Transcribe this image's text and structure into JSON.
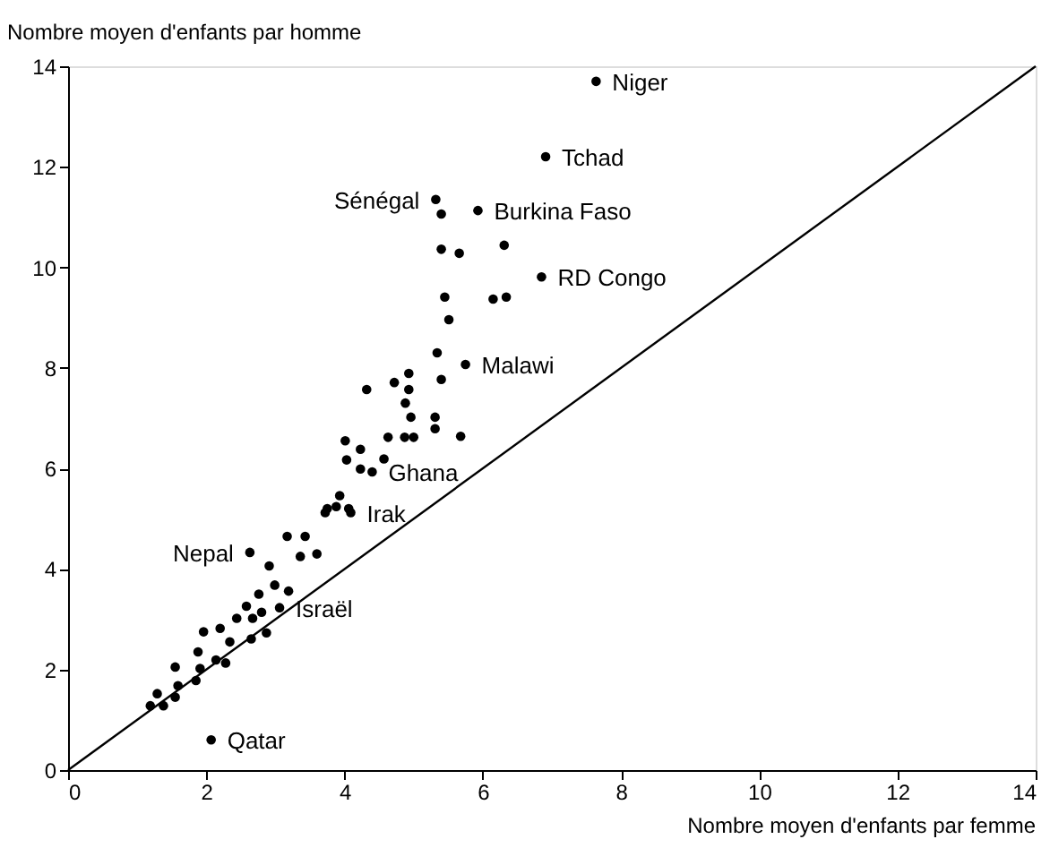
{
  "chart_data": {
    "type": "scatter",
    "xlabel": "Nombre moyen d'enfants par femme",
    "ylabel": "Nombre moyen d'enfants par homme",
    "xlim": [
      0,
      14
    ],
    "ylim": [
      0,
      14
    ],
    "xticks": [
      0,
      2,
      4,
      6,
      8,
      10,
      12,
      14
    ],
    "yticks": [
      0,
      2,
      4,
      6,
      8,
      10,
      12,
      14
    ],
    "grid": false,
    "marker": "circle",
    "series": [
      {
        "color": "#000000",
        "x": [
          7.64,
          6.91,
          5.32,
          5.4,
          5.93,
          5.4,
          5.66,
          6.31,
          6.85,
          5.45,
          6.15,
          6.34,
          5.51,
          5.34,
          5.75,
          5.4,
          4.32,
          4.72,
          4.93,
          4.93,
          4.88,
          4.96,
          5.31,
          5.31,
          5.68,
          4.63,
          4.87,
          5.0,
          4.01,
          4.23,
          4.03,
          4.23,
          4.4,
          4.57,
          3.93,
          3.88,
          4.06,
          3.75,
          3.72,
          4.09,
          3.17,
          3.43,
          3.36,
          3.6,
          2.63,
          2.91,
          2.99,
          3.19,
          2.76,
          3.06,
          2.8,
          2.58,
          2.44,
          2.67,
          2.2,
          1.96,
          2.34,
          2.65,
          2.87,
          1.88,
          2.14,
          2.28,
          1.55,
          1.91,
          1.59,
          1.85,
          1.29,
          1.55,
          1.38,
          1.19,
          2.07
        ],
        "values": [
          13.7,
          12.2,
          11.35,
          11.06,
          11.13,
          10.36,
          10.28,
          10.44,
          9.81,
          9.41,
          9.37,
          9.41,
          8.96,
          8.3,
          8.07,
          7.77,
          7.57,
          7.71,
          7.89,
          7.57,
          7.3,
          7.02,
          7.02,
          6.79,
          6.64,
          6.62,
          6.62,
          6.62,
          6.55,
          6.38,
          6.17,
          5.99,
          5.93,
          6.19,
          5.46,
          5.24,
          5.2,
          5.2,
          5.12,
          5.12,
          4.65,
          4.65,
          4.25,
          4.3,
          4.33,
          4.06,
          3.68,
          3.56,
          3.5,
          3.23,
          3.14,
          3.26,
          3.02,
          3.02,
          2.82,
          2.75,
          2.55,
          2.61,
          2.73,
          2.35,
          2.19,
          2.13,
          2.05,
          2.02,
          1.68,
          1.78,
          1.52,
          1.45,
          1.28,
          1.28,
          0.6
        ]
      },
      {
        "type": "line",
        "marker": "none",
        "color": "#000000",
        "x": [
          0,
          14
        ],
        "values": [
          0,
          14
        ]
      }
    ],
    "annotations": [
      {
        "text": "Niger",
        "x": 7.64,
        "y": 13.7
      },
      {
        "text": "Tchad",
        "x": 6.91,
        "y": 12.2
      },
      {
        "text": "Sénégal",
        "x": 5.32,
        "y": 11.35
      },
      {
        "text": "Burkina Faso",
        "x": 5.93,
        "y": 11.13
      },
      {
        "text": "RD Congo",
        "x": 6.85,
        "y": 9.81
      },
      {
        "text": "Malawi",
        "x": 5.75,
        "y": 8.07
      },
      {
        "text": "Ghana",
        "x": 4.4,
        "y": 5.93
      },
      {
        "text": "Irak",
        "x": 4.09,
        "y": 5.12
      },
      {
        "text": "Nepal",
        "x": 2.63,
        "y": 4.33
      },
      {
        "text": "Israël",
        "x": 3.06,
        "y": 3.23
      },
      {
        "text": "Qatar",
        "x": 2.07,
        "y": 0.6
      }
    ]
  }
}
